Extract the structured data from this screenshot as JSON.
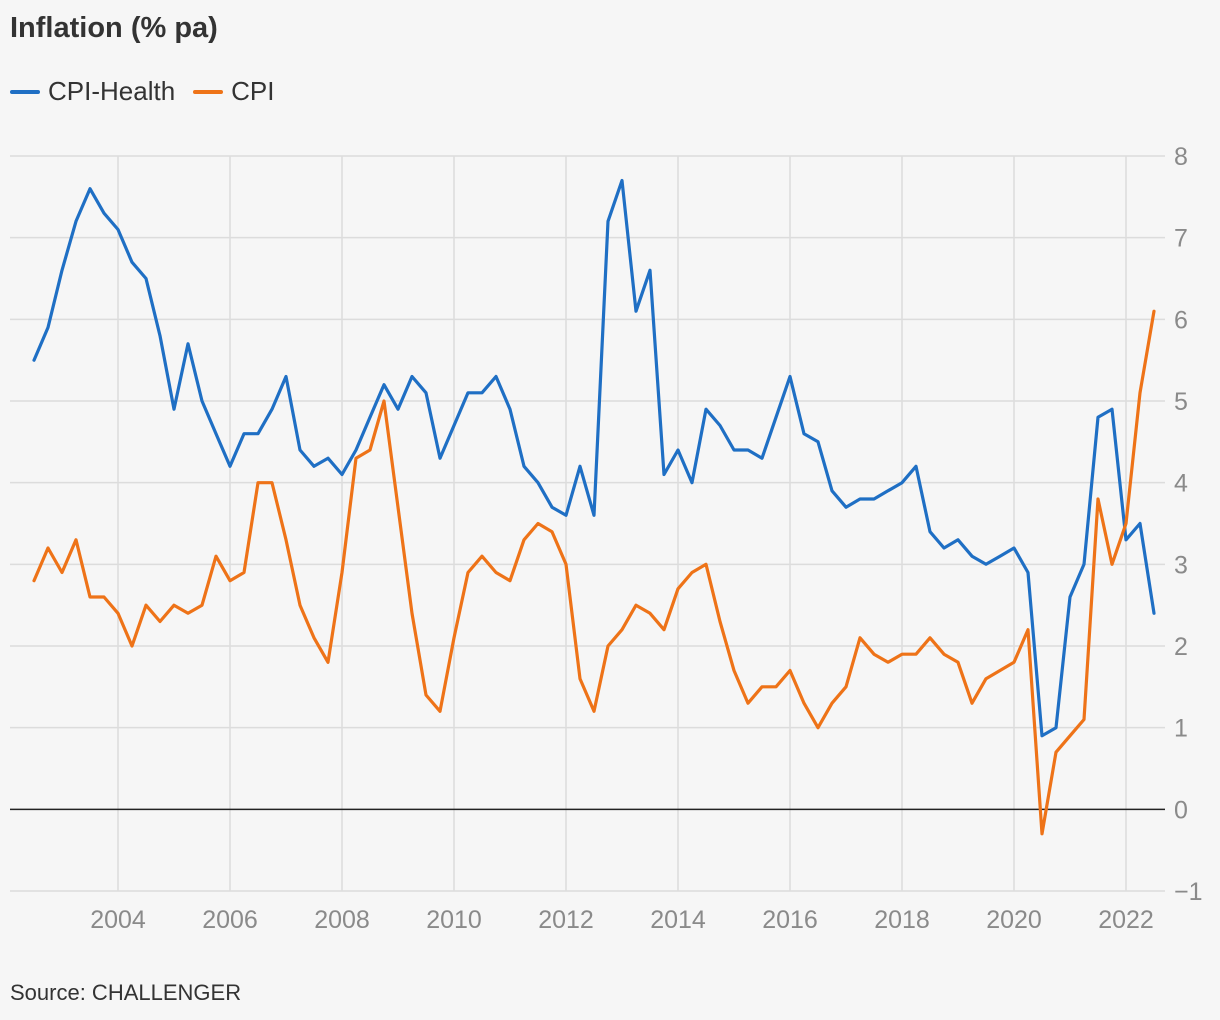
{
  "colors": {
    "cpi_health": "#1f6fc4",
    "cpi": "#ee7318",
    "grid": "#dcdcdc",
    "zero_line": "#222222"
  },
  "chart_data": {
    "type": "line",
    "title": "Inflation (% pa)",
    "source": "Source: CHALLENGER",
    "ylim": [
      -1,
      8
    ],
    "xlim": [
      2002.0,
      2022.75
    ],
    "y_ticks": [
      {
        "value": -1,
        "label": "−1"
      },
      {
        "value": 0,
        "label": "0"
      },
      {
        "value": 1,
        "label": "1"
      },
      {
        "value": 2,
        "label": "2"
      },
      {
        "value": 3,
        "label": "3"
      },
      {
        "value": 4,
        "label": "4"
      },
      {
        "value": 5,
        "label": "5"
      },
      {
        "value": 6,
        "label": "6"
      },
      {
        "value": 7,
        "label": "7"
      },
      {
        "value": 8,
        "label": "8"
      }
    ],
    "x_ticks": [
      {
        "value": 2004,
        "label": "2004"
      },
      {
        "value": 2006,
        "label": "2006"
      },
      {
        "value": 2008,
        "label": "2008"
      },
      {
        "value": 2010,
        "label": "2010"
      },
      {
        "value": 2012,
        "label": "2012"
      },
      {
        "value": 2014,
        "label": "2014"
      },
      {
        "value": 2016,
        "label": "2016"
      },
      {
        "value": 2018,
        "label": "2018"
      },
      {
        "value": 2020,
        "label": "2020"
      },
      {
        "value": 2022,
        "label": "2022"
      }
    ],
    "grid": true,
    "legend_position": "top-left",
    "x_start": 2002.5,
    "x_step": 0.25,
    "series": [
      {
        "name": "CPI-Health",
        "values": [
          5.5,
          5.9,
          6.6,
          7.2,
          7.6,
          7.3,
          7.1,
          6.7,
          6.5,
          5.8,
          4.9,
          5.7,
          5.0,
          4.6,
          4.2,
          4.6,
          4.6,
          4.9,
          5.3,
          4.4,
          4.2,
          4.3,
          4.1,
          4.4,
          4.8,
          5.2,
          4.9,
          5.3,
          5.1,
          4.3,
          4.7,
          5.1,
          5.1,
          5.3,
          4.9,
          4.2,
          4.0,
          3.7,
          3.6,
          4.2,
          3.6,
          7.2,
          7.7,
          6.1,
          6.6,
          4.1,
          4.4,
          4.0,
          4.9,
          4.7,
          4.4,
          4.4,
          4.3,
          4.8,
          5.3,
          4.6,
          4.5,
          3.9,
          3.7,
          3.8,
          3.8,
          3.9,
          4.0,
          4.2,
          3.4,
          3.2,
          3.3,
          3.1,
          3.0,
          3.1,
          3.2,
          2.9,
          0.9,
          1.0,
          2.6,
          3.0,
          4.8,
          4.9,
          3.3,
          3.5,
          2.4
        ]
      },
      {
        "name": "CPI",
        "values": [
          2.8,
          3.2,
          2.9,
          3.3,
          2.6,
          2.6,
          2.4,
          2.0,
          2.5,
          2.3,
          2.5,
          2.4,
          2.5,
          3.1,
          2.8,
          2.9,
          4.0,
          4.0,
          3.3,
          2.5,
          2.1,
          1.8,
          2.9,
          4.3,
          4.4,
          5.0,
          3.7,
          2.4,
          1.4,
          1.2,
          2.1,
          2.9,
          3.1,
          2.9,
          2.8,
          3.3,
          3.5,
          3.4,
          3.0,
          1.6,
          1.2,
          2.0,
          2.2,
          2.5,
          2.4,
          2.2,
          2.7,
          2.9,
          3.0,
          2.3,
          1.7,
          1.3,
          1.5,
          1.5,
          1.7,
          1.3,
          1.0,
          1.3,
          1.5,
          2.1,
          1.9,
          1.8,
          1.9,
          1.9,
          2.1,
          1.9,
          1.8,
          1.3,
          1.6,
          1.7,
          1.8,
          2.2,
          -0.3,
          0.7,
          0.9,
          1.1,
          3.8,
          3.0,
          3.5,
          5.1,
          6.1
        ]
      }
    ]
  }
}
